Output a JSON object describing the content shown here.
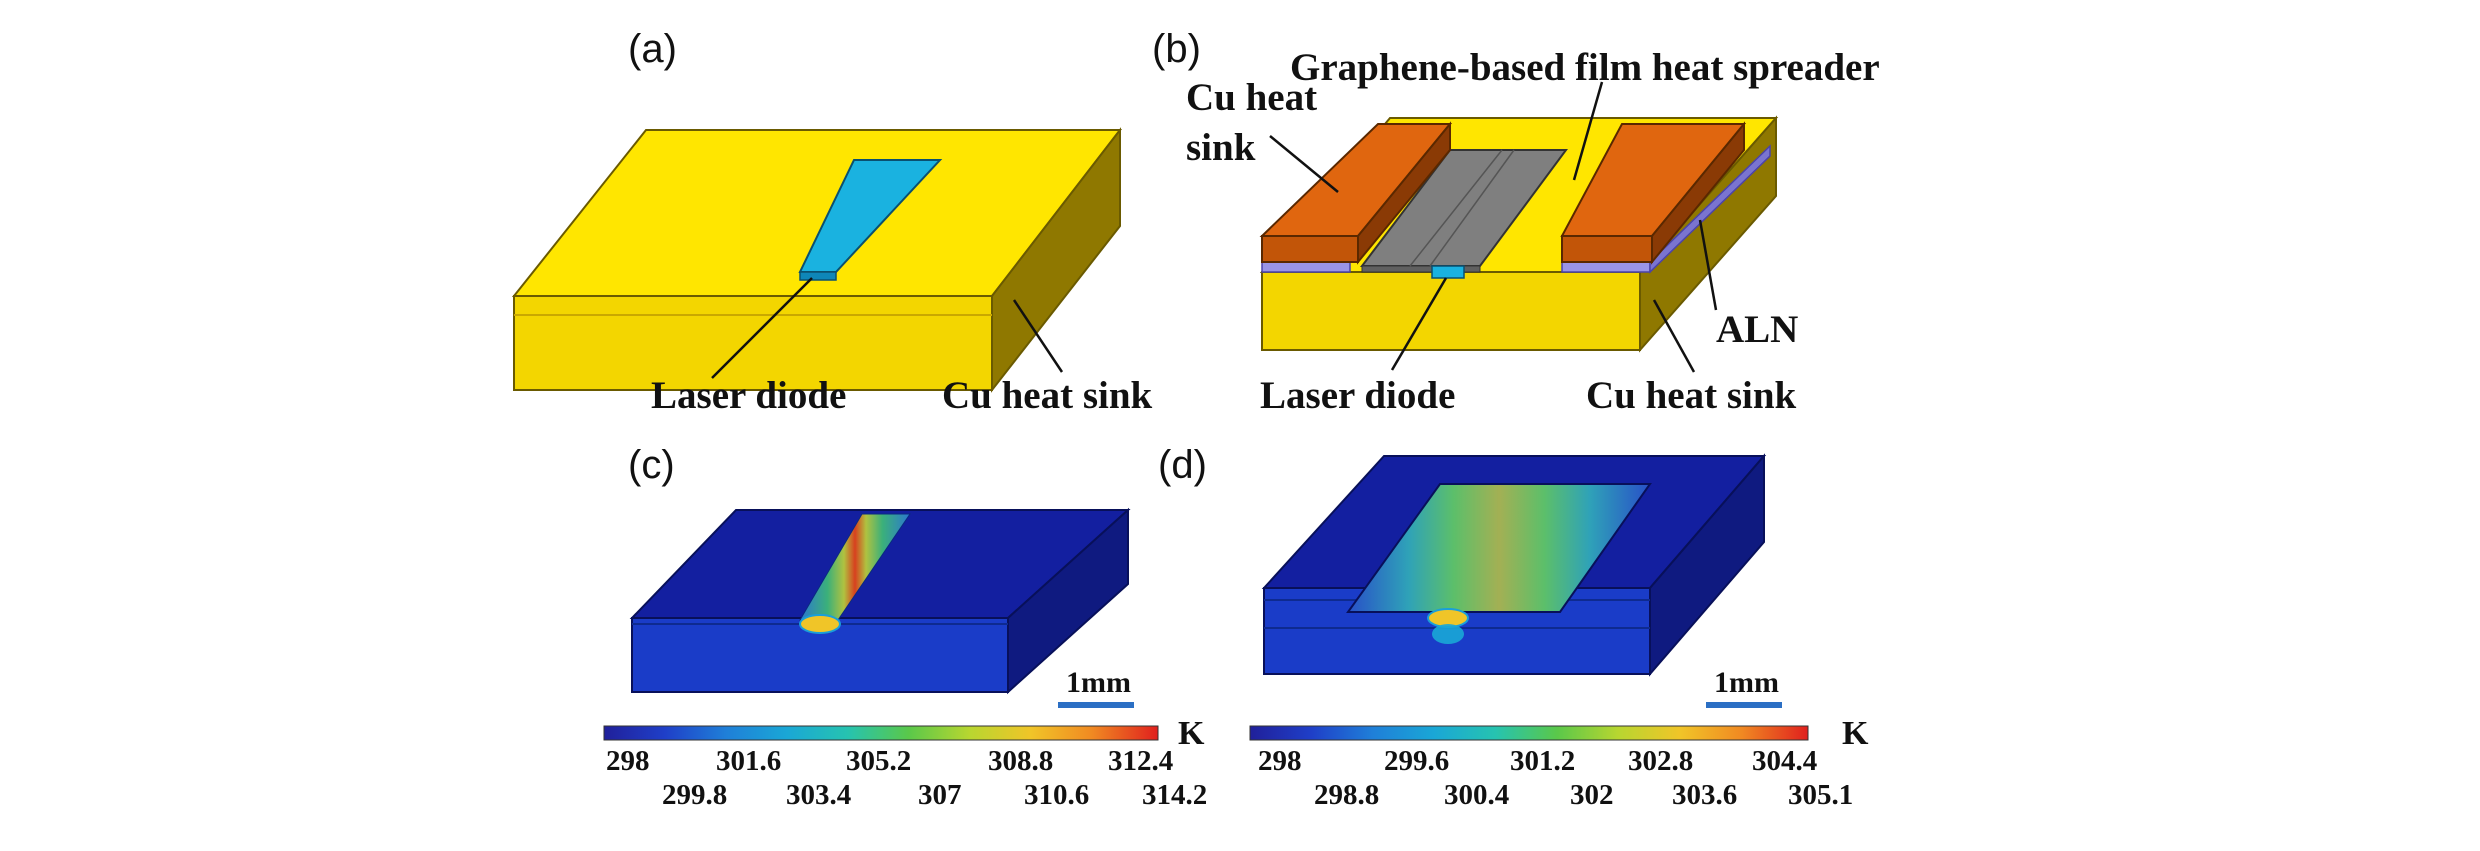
{
  "panels": {
    "a": {
      "label": "(a)",
      "callouts": {
        "laser_diode": "Laser diode",
        "cu_heat_sink": "Cu heat sink"
      }
    },
    "b": {
      "label": "(b)",
      "callouts": {
        "spreader": "Graphene-based film heat spreader",
        "cu_sink_line1": "Cu heat",
        "cu_sink_line2": "sink",
        "aln": "ALN",
        "laser_diode": "Laser diode",
        "cu_heat_sink": "Cu heat sink"
      }
    },
    "c": {
      "label": "(c)",
      "scale_bar": "1mm",
      "colorbar": {
        "unit": "K",
        "top_ticks": [
          "298",
          "301.6",
          "305.2",
          "308.8",
          "312.4"
        ],
        "bottom_ticks": [
          "299.8",
          "303.4",
          "307",
          "310.6",
          "314.2"
        ]
      }
    },
    "d": {
      "label": "(d)",
      "scale_bar": "1mm",
      "colorbar": {
        "unit": "K",
        "top_ticks": [
          "298",
          "299.6",
          "301.2",
          "302.8",
          "304.4"
        ],
        "bottom_ticks": [
          "298.8",
          "300.4",
          "302",
          "303.6",
          "305.1"
        ]
      }
    }
  },
  "colors": {
    "sink_yellow": "#ffe600",
    "sink_front": "#f0d400",
    "sink_side": "#8a7300",
    "diode_cyan": "#1ab2e0",
    "cu_orange": "#e0660f",
    "graphene_gray": "#7f7f7f",
    "aln_purple": "#9a94e6",
    "thermal_navy": "#111e9e",
    "colorbar": [
      "#20209a",
      "#1f5fd6",
      "#1a9fd9",
      "#26c3b0",
      "#5ac84a",
      "#b8d630",
      "#f0c528",
      "#f08a22",
      "#e0201e"
    ]
  }
}
